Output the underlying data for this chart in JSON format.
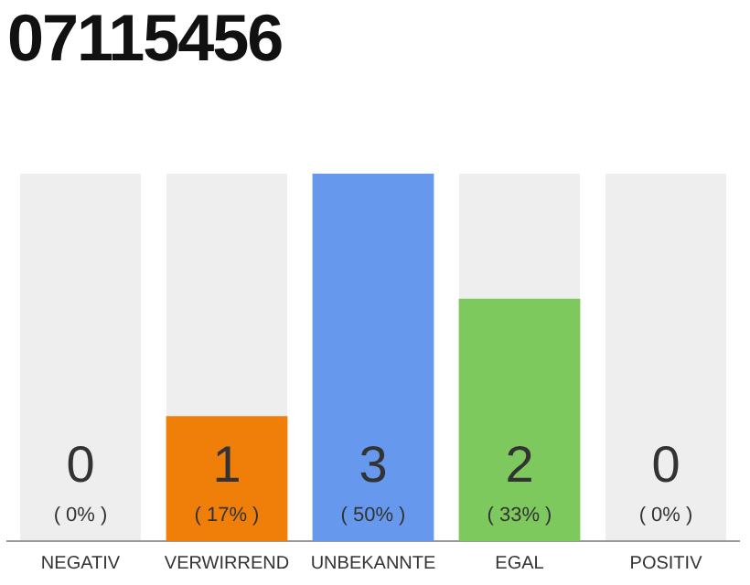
{
  "chart_data": {
    "type": "bar",
    "title": "07115456",
    "categories": [
      "NEGATIV",
      "VERWIRREND",
      "UNBEKANNTE",
      "EGAL",
      "POSITIV"
    ],
    "values": [
      0,
      17,
      50,
      33,
      0
    ],
    "colors": [
      "#aaaaaa",
      "#f07f0a",
      "#6699ee",
      "#7dc95e",
      "#aaaaaa"
    ],
    "value_labels": [
      "( 0% )",
      "( 17% )",
      "( 50% )",
      "( 33% )",
      "( 0% )"
    ],
    "annotations": [
      "0",
      "1",
      "3",
      "2",
      "0"
    ],
    "grid": false,
    "legend": false
  }
}
